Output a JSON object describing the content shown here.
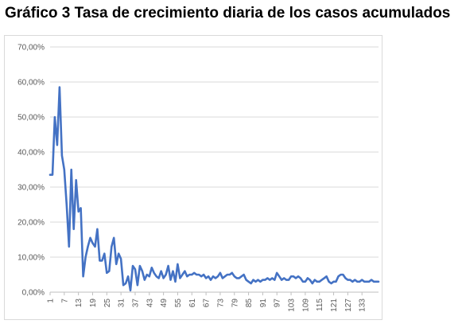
{
  "title": "Gráfico 3 Tasa de crecimiento diaria de los casos acumulados",
  "chart_data": {
    "type": "line",
    "title": "Gráfico 3 Tasa de crecimiento diaria de los casos acumulados",
    "xlabel": "",
    "ylabel": "",
    "ylim": [
      0,
      0.7
    ],
    "xlim": [
      1,
      140
    ],
    "grid": "horizontal",
    "legend": "none",
    "y_ticks": [
      "0,00%",
      "10,00%",
      "20,00%",
      "30,00%",
      "40,00%",
      "50,00%",
      "60,00%",
      "70,00%"
    ],
    "y_tick_values": [
      0,
      0.1,
      0.2,
      0.3,
      0.4,
      0.5,
      0.6,
      0.7
    ],
    "x_ticks": [
      "1",
      "7",
      "13",
      "19",
      "25",
      "31",
      "37",
      "43",
      "49",
      "55",
      "61",
      "67",
      "73",
      "79",
      "85",
      "91",
      "97",
      "103",
      "109",
      "115",
      "121",
      "127",
      "133"
    ],
    "x_tick_values": [
      1,
      7,
      13,
      19,
      25,
      31,
      37,
      43,
      49,
      55,
      61,
      67,
      73,
      79,
      85,
      91,
      97,
      103,
      109,
      115,
      121,
      127,
      133
    ],
    "series": [
      {
        "color": "#4472c4",
        "x": [
          1,
          2,
          3,
          4,
          5,
          6,
          7,
          8,
          9,
          10,
          11,
          12,
          13,
          14,
          15,
          16,
          17,
          18,
          19,
          20,
          21,
          22,
          23,
          24,
          25,
          26,
          27,
          28,
          29,
          30,
          31,
          32,
          33,
          34,
          35,
          36,
          37,
          38,
          39,
          40,
          41,
          42,
          43,
          44,
          45,
          46,
          47,
          48,
          49,
          50,
          51,
          52,
          53,
          54,
          55,
          56,
          57,
          58,
          59,
          60,
          61,
          62,
          63,
          64,
          65,
          66,
          67,
          68,
          69,
          70,
          71,
          72,
          73,
          74,
          75,
          76,
          77,
          78,
          79,
          80,
          81,
          82,
          83,
          84,
          85,
          86,
          87,
          88,
          89,
          90,
          91,
          92,
          93,
          94,
          95,
          96,
          97,
          98,
          99,
          100,
          101,
          102,
          103,
          104,
          105,
          106,
          107,
          108,
          109,
          110,
          111,
          112,
          113,
          114,
          115,
          116,
          117,
          118,
          119,
          120,
          121,
          122,
          123,
          124,
          125,
          126,
          127,
          128,
          129,
          130,
          131,
          132,
          133,
          134,
          135,
          136,
          137,
          138,
          139,
          140
        ],
        "y": [
          0.335,
          0.335,
          0.5,
          0.42,
          0.585,
          0.39,
          0.35,
          0.25,
          0.13,
          0.35,
          0.18,
          0.32,
          0.23,
          0.24,
          0.045,
          0.1,
          0.13,
          0.155,
          0.14,
          0.13,
          0.18,
          0.09,
          0.09,
          0.11,
          0.055,
          0.06,
          0.13,
          0.155,
          0.08,
          0.11,
          0.095,
          0.02,
          0.025,
          0.045,
          0.005,
          0.075,
          0.065,
          0.02,
          0.075,
          0.06,
          0.035,
          0.05,
          0.045,
          0.07,
          0.055,
          0.045,
          0.04,
          0.06,
          0.04,
          0.05,
          0.075,
          0.035,
          0.06,
          0.03,
          0.08,
          0.04,
          0.05,
          0.06,
          0.045,
          0.05,
          0.05,
          0.055,
          0.05,
          0.05,
          0.045,
          0.05,
          0.04,
          0.045,
          0.035,
          0.045,
          0.04,
          0.045,
          0.055,
          0.04,
          0.045,
          0.05,
          0.05,
          0.055,
          0.045,
          0.04,
          0.04,
          0.045,
          0.05,
          0.035,
          0.03,
          0.025,
          0.035,
          0.03,
          0.035,
          0.03,
          0.035,
          0.035,
          0.04,
          0.035,
          0.04,
          0.035,
          0.055,
          0.045,
          0.035,
          0.04,
          0.035,
          0.035,
          0.045,
          0.045,
          0.04,
          0.045,
          0.04,
          0.03,
          0.03,
          0.04,
          0.035,
          0.025,
          0.035,
          0.03,
          0.03,
          0.035,
          0.04,
          0.045,
          0.03,
          0.025,
          0.03,
          0.03,
          0.045,
          0.05,
          0.05,
          0.04,
          0.035,
          0.035,
          0.03,
          0.035,
          0.03,
          0.03,
          0.035,
          0.03,
          0.03,
          0.03,
          0.035,
          0.03,
          0.03,
          0.03
        ]
      }
    ]
  }
}
